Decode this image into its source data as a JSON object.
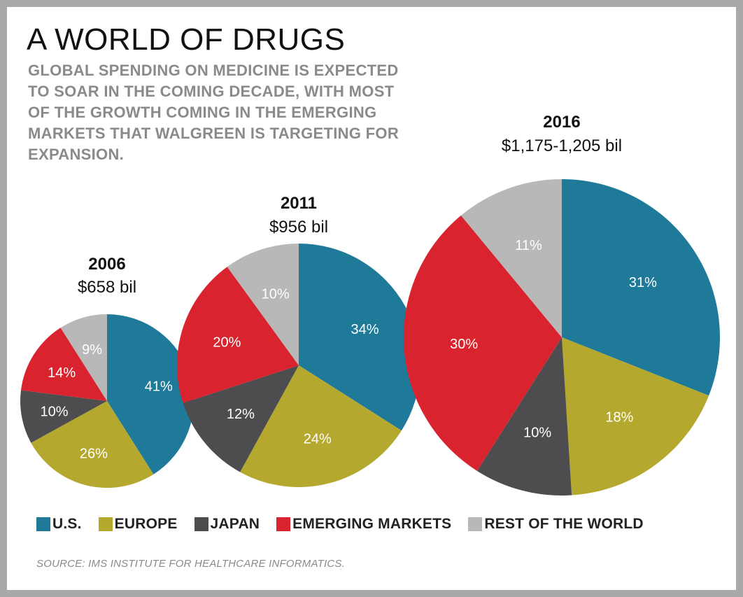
{
  "header": {
    "title": "A WORLD OF DRUGS",
    "subtitle": "GLOBAL SPENDING ON MEDICINE IS EXPECTED\nTO SOAR IN THE COMING DECADE, WITH MOST\nOF THE GROWTH COMING IN THE EMERGING\nMARKETS THAT WALGREEN IS TARGETING FOR\nEXPANSION."
  },
  "colors": {
    "us": "#1f7a99",
    "europe": "#b5a82f",
    "japan": "#4d4d4f",
    "emerging": "#d9232e",
    "rest": "#b8b8b8"
  },
  "chart_data": {
    "type": "pie",
    "title": "A WORLD OF DRUGS",
    "categories": [
      "U.S.",
      "EUROPE",
      "JAPAN",
      "EMERGING MARKETS",
      "REST OF THE WORLD"
    ],
    "pies": [
      {
        "year": "2006",
        "total_label": "$658 bil",
        "values": [
          41,
          26,
          10,
          14,
          9
        ],
        "labels": [
          "41%",
          "26%",
          "10%",
          "14%",
          "9%"
        ]
      },
      {
        "year": "2011",
        "total_label": "$956 bil",
        "values": [
          34,
          24,
          12,
          20,
          10
        ],
        "labels": [
          "34%",
          "24%",
          "12%",
          "20%",
          "10%"
        ]
      },
      {
        "year": "2016",
        "total_label": "$1,175-1,205 bil",
        "values": [
          31,
          18,
          10,
          30,
          11
        ],
        "labels": [
          "31%",
          "18%",
          "10%",
          "30%",
          "11%"
        ]
      }
    ],
    "legend_position": "bottom"
  },
  "legend": {
    "items": [
      {
        "label": "U.S.",
        "color_key": "us"
      },
      {
        "label": "EUROPE",
        "color_key": "europe"
      },
      {
        "label": "JAPAN",
        "color_key": "japan"
      },
      {
        "label": "EMERGING MARKETS",
        "color_key": "emerging"
      },
      {
        "label": "REST OF THE WORLD",
        "color_key": "rest"
      }
    ]
  },
  "footer": {
    "source": "SOURCE: IMS INSTITUTE FOR HEALTHCARE INFORMATICS."
  }
}
